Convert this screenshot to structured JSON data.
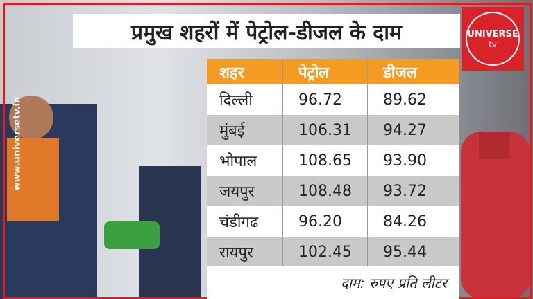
{
  "header": {
    "title": "प्रमुख शहरों में पेट्रोल-डीजल के दाम"
  },
  "table": {
    "columns": [
      "शहर",
      "पेट्रोल",
      "डीजल"
    ],
    "rows": [
      [
        "दिल्ली",
        "96.72",
        "89.62"
      ],
      [
        "मुंबई",
        "106.31",
        "94.27"
      ],
      [
        "भोपाल",
        "108.65",
        "93.90"
      ],
      [
        "जयपुर",
        "108.48",
        "93.72"
      ],
      [
        "चंडीगढ",
        "96.20",
        "84.26"
      ],
      [
        "रायपुर",
        "102.45",
        "95.44"
      ]
    ]
  },
  "note": "दाम: रुपए प्रति लीटर",
  "logo": {
    "name": "UNIVERSE",
    "suffix": "tv"
  },
  "website": "www.universetv.in"
}
